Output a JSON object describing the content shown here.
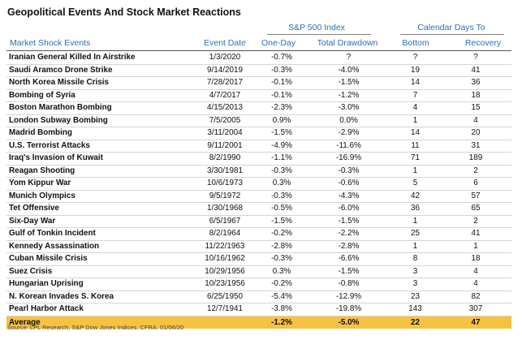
{
  "title": "Geopolitical Events And Stock Market Reactions",
  "headers": {
    "group_sp500": "S&P 500 Index",
    "group_calendar": "Calendar Days To",
    "event": "Market Shock Events",
    "date": "Event Date",
    "one_day": "One-Day",
    "total_drawdown": "Total Drawdown",
    "bottom": "Bottom",
    "recovery": "Recovery"
  },
  "rows": [
    {
      "event": "Iranian General Killed In Airstrike",
      "date": "1/3/2020",
      "one_day": "-0.7%",
      "total": "?",
      "bottom": "?",
      "recovery": "?"
    },
    {
      "event": "Saudi Aramco Drone Strike",
      "date": "9/14/2019",
      "one_day": "-0.3%",
      "total": "-4.0%",
      "bottom": "19",
      "recovery": "41"
    },
    {
      "event": "North Korea Missile Crisis",
      "date": "7/28/2017",
      "one_day": "-0.1%",
      "total": "-1.5%",
      "bottom": "14",
      "recovery": "36"
    },
    {
      "event": "Bombing of Syria",
      "date": "4/7/2017",
      "one_day": "-0.1%",
      "total": "-1.2%",
      "bottom": "7",
      "recovery": "18"
    },
    {
      "event": "Boston Marathon Bombing",
      "date": "4/15/2013",
      "one_day": "-2.3%",
      "total": "-3.0%",
      "bottom": "4",
      "recovery": "15"
    },
    {
      "event": "London Subway Bombing",
      "date": "7/5/2005",
      "one_day": "0.9%",
      "total": "0.0%",
      "bottom": "1",
      "recovery": "4"
    },
    {
      "event": "Madrid Bombing",
      "date": "3/11/2004",
      "one_day": "-1.5%",
      "total": "-2.9%",
      "bottom": "14",
      "recovery": "20"
    },
    {
      "event": "U.S. Terrorist Attacks",
      "date": "9/11/2001",
      "one_day": "-4.9%",
      "total": "-11.6%",
      "bottom": "11",
      "recovery": "31"
    },
    {
      "event": "Iraq's Invasion of Kuwait",
      "date": "8/2/1990",
      "one_day": "-1.1%",
      "total": "-16.9%",
      "bottom": "71",
      "recovery": "189"
    },
    {
      "event": "Reagan Shooting",
      "date": "3/30/1981",
      "one_day": "-0.3%",
      "total": "-0.3%",
      "bottom": "1",
      "recovery": "2"
    },
    {
      "event": "Yom Kippur War",
      "date": "10/6/1973",
      "one_day": "0.3%",
      "total": "-0.6%",
      "bottom": "5",
      "recovery": "6"
    },
    {
      "event": "Munich Olympics",
      "date": "9/5/1972",
      "one_day": "-0.3%",
      "total": "-4.3%",
      "bottom": "42",
      "recovery": "57"
    },
    {
      "event": "Tet Offensive",
      "date": "1/30/1968",
      "one_day": "-0.5%",
      "total": "-6.0%",
      "bottom": "36",
      "recovery": "65"
    },
    {
      "event": "Six-Day War",
      "date": "6/5/1967",
      "one_day": "-1.5%",
      "total": "-1.5%",
      "bottom": "1",
      "recovery": "2"
    },
    {
      "event": "Gulf of Tonkin Incident",
      "date": "8/2/1964",
      "one_day": "-0.2%",
      "total": "-2.2%",
      "bottom": "25",
      "recovery": "41"
    },
    {
      "event": "Kennedy Assassination",
      "date": "11/22/1963",
      "one_day": "-2.8%",
      "total": "-2.8%",
      "bottom": "1",
      "recovery": "1"
    },
    {
      "event": "Cuban Missile Crisis",
      "date": "10/16/1962",
      "one_day": "-0.3%",
      "total": "-6.6%",
      "bottom": "8",
      "recovery": "18"
    },
    {
      "event": "Suez Crisis",
      "date": "10/29/1956",
      "one_day": "0.3%",
      "total": "-1.5%",
      "bottom": "3",
      "recovery": "4"
    },
    {
      "event": "Hungarian Uprising",
      "date": "10/23/1956",
      "one_day": "-0.2%",
      "total": "-0.8%",
      "bottom": "3",
      "recovery": "4"
    },
    {
      "event": "N. Korean Invades S. Korea",
      "date": "6/25/1950",
      "one_day": "-5.4%",
      "total": "-12.9%",
      "bottom": "23",
      "recovery": "82"
    },
    {
      "event": "Pearl Harbor Attack",
      "date": "12/7/1941",
      "one_day": "-3.8%",
      "total": "-19.8%",
      "bottom": "143",
      "recovery": "307"
    }
  ],
  "average": {
    "label": "Average",
    "one_day": "-1.2%",
    "total": "-5.0%",
    "bottom": "22",
    "recovery": "47"
  },
  "source": "Source: LPL Research, S&P Dow Jones Indices, CFRA. 01/06/20",
  "colors": {
    "header_blue": "#2e6db5",
    "average_highlight": "#f5c242"
  }
}
